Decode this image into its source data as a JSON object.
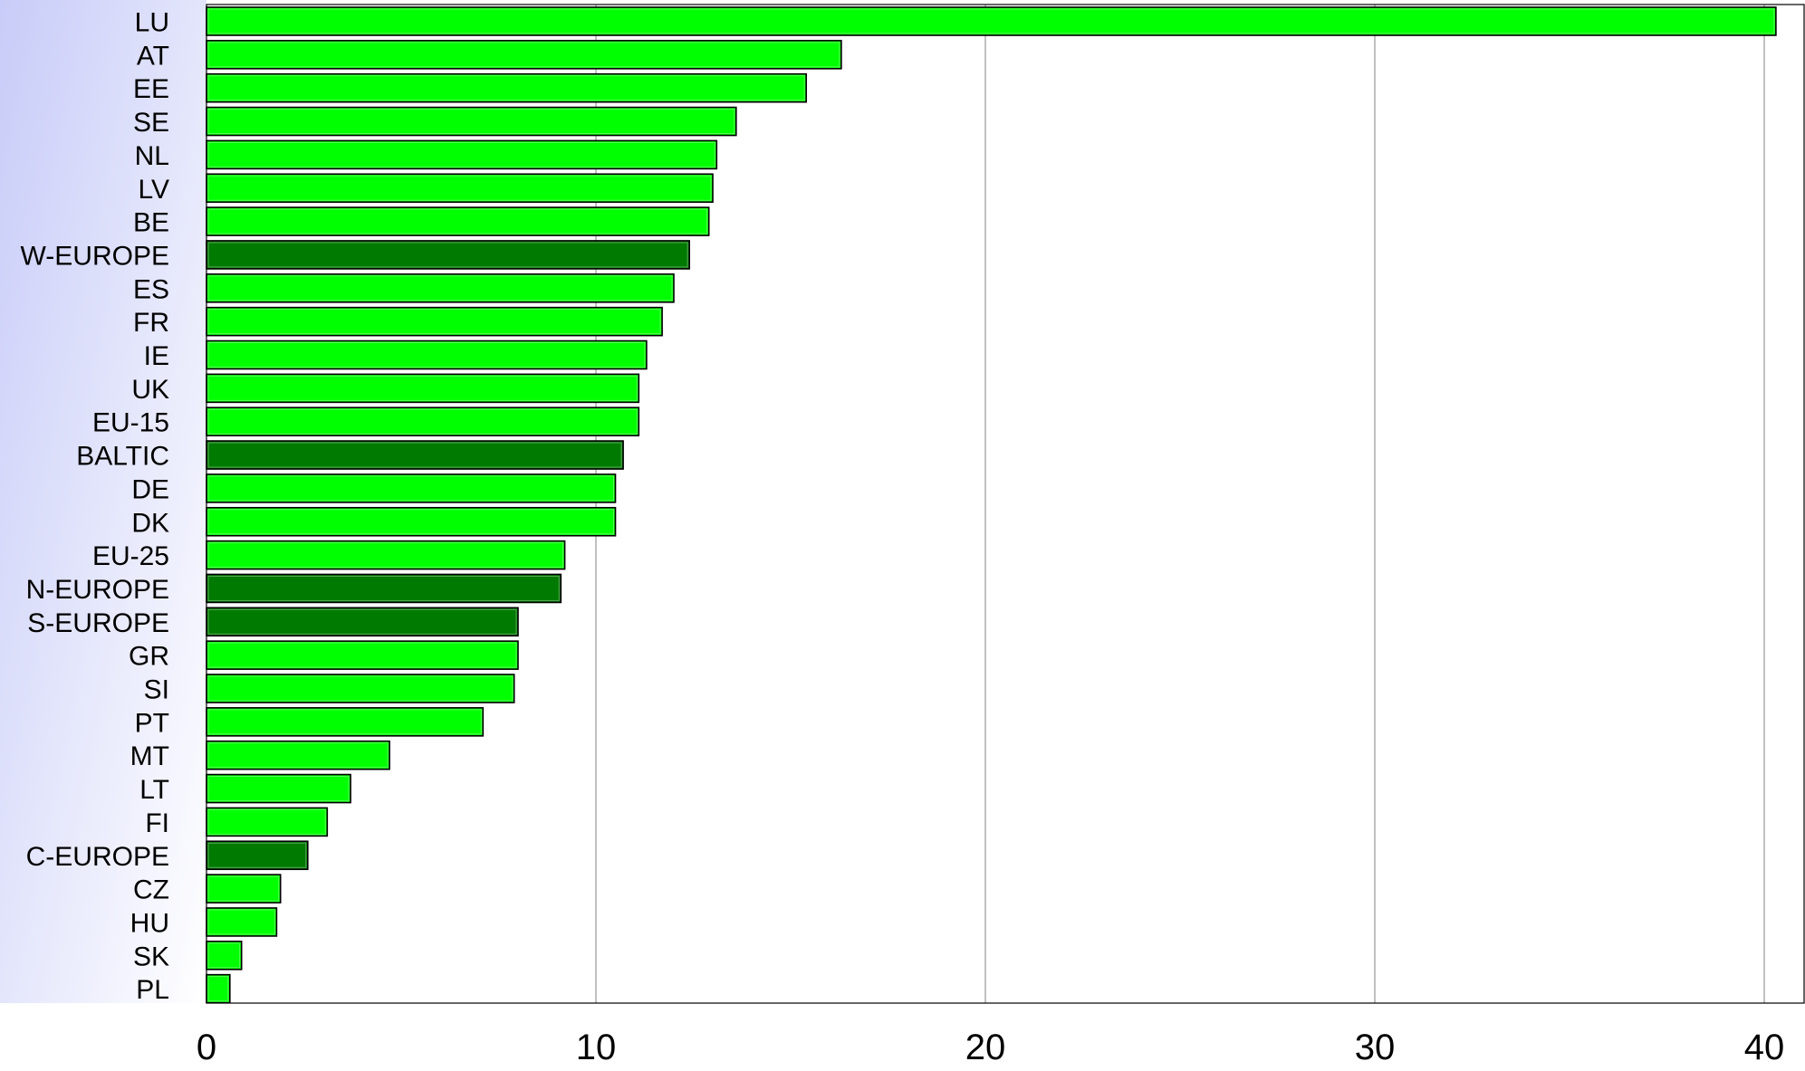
{
  "chart_data": {
    "type": "bar",
    "orientation": "horizontal",
    "title": "",
    "xlabel": "",
    "ylabel": "",
    "xlim": [
      0,
      41
    ],
    "grid": true,
    "legend": "none",
    "x_ticks": [
      0,
      10,
      20,
      30,
      40
    ],
    "colors": {
      "country": "#00ff00",
      "region": "#007a00",
      "bar_border": "#000000",
      "gridline": "#808080",
      "label_panel_left": "#c8ccf8",
      "label_panel_right": "#ffffff"
    },
    "categories": [
      "LU",
      "AT",
      "EE",
      "SE",
      "NL",
      "LV",
      "BE",
      "W-EUROPE",
      "ES",
      "FR",
      "IE",
      "UK",
      "EU-15",
      "BALTIC",
      "DE",
      "DK",
      "EU-25",
      "N-EUROPE",
      "S-EUROPE",
      "GR",
      "SI",
      "PT",
      "MT",
      "LT",
      "FI",
      "C-EUROPE",
      "CZ",
      "HU",
      "SK",
      "PL"
    ],
    "values": [
      40.3,
      16.3,
      15.4,
      13.6,
      13.1,
      13.0,
      12.9,
      12.4,
      12.0,
      11.7,
      11.3,
      11.1,
      11.1,
      10.7,
      10.5,
      10.5,
      9.2,
      9.1,
      8.0,
      8.0,
      7.9,
      7.1,
      4.7,
      3.7,
      3.1,
      2.6,
      1.9,
      1.8,
      0.9,
      0.6
    ],
    "region_categories": [
      "W-EUROPE",
      "BALTIC",
      "N-EUROPE",
      "S-EUROPE",
      "C-EUROPE"
    ]
  }
}
